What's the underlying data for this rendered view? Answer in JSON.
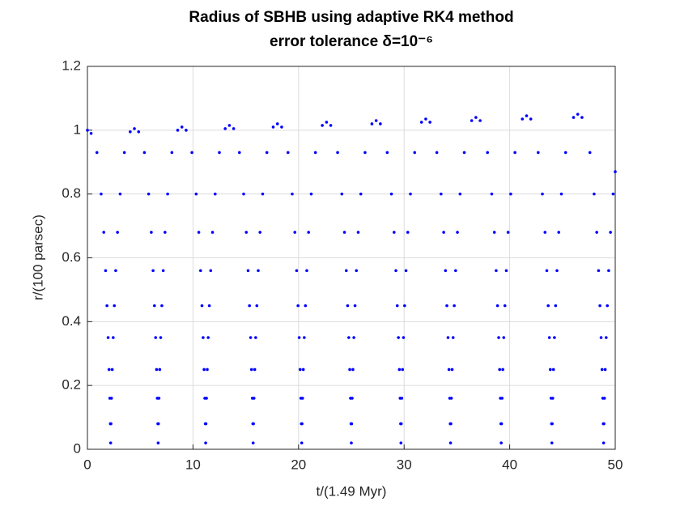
{
  "chart_data": {
    "type": "scatter",
    "title": "Radius of SBHB using adaptive RK4 method",
    "subtitle": "error tolerance δ=10⁻⁶",
    "x_label": "t/(1.49 Myr)",
    "y_label": "r/(100 parsec)",
    "color": "#0000ff",
    "grid": true,
    "xlim": [
      0,
      50
    ],
    "ylim": [
      0,
      1.2
    ],
    "xticks": [
      0,
      10,
      20,
      30,
      40,
      50
    ],
    "yticks": [
      0,
      0.2,
      0.4,
      0.6,
      0.8,
      1,
      1.2
    ],
    "x": [
      0,
      0.35,
      0.9,
      1.3,
      1.55,
      1.72,
      1.85,
      1.96,
      2.05,
      2.12,
      2.17,
      2.2,
      2.23,
      2.28,
      2.35,
      2.44,
      2.55,
      2.68,
      2.85,
      3.1,
      3.5,
      4.05,
      4.45,
      4.85,
      5.4,
      5.8,
      6.05,
      6.22,
      6.35,
      6.46,
      6.55,
      6.62,
      6.67,
      6.7,
      6.73,
      6.78,
      6.85,
      6.94,
      7.05,
      7.18,
      7.35,
      7.6,
      8.0,
      8.55,
      8.95,
      9.35,
      9.9,
      10.3,
      10.55,
      10.72,
      10.85,
      10.96,
      11.05,
      11.12,
      11.17,
      11.2,
      11.23,
      11.28,
      11.35,
      11.44,
      11.55,
      11.68,
      11.85,
      12.1,
      12.5,
      13.05,
      13.45,
      13.85,
      14.4,
      14.8,
      15.05,
      15.22,
      15.35,
      15.46,
      15.55,
      15.62,
      15.67,
      15.7,
      15.73,
      15.78,
      15.85,
      15.94,
      16.05,
      16.18,
      16.35,
      16.6,
      17.0,
      17.6,
      18.0,
      18.4,
      19.0,
      19.4,
      19.65,
      19.82,
      19.95,
      20.06,
      20.15,
      20.22,
      20.27,
      20.3,
      20.33,
      20.38,
      20.45,
      20.54,
      20.65,
      20.78,
      20.95,
      21.2,
      21.6,
      22.25,
      22.65,
      23.05,
      23.7,
      24.1,
      24.35,
      24.52,
      24.65,
      24.76,
      24.85,
      24.92,
      24.97,
      25.0,
      25.03,
      25.08,
      25.15,
      25.24,
      25.35,
      25.48,
      25.65,
      25.9,
      26.3,
      26.95,
      27.35,
      27.75,
      28.4,
      28.8,
      29.05,
      29.22,
      29.35,
      29.46,
      29.55,
      29.62,
      29.67,
      29.7,
      29.73,
      29.78,
      29.85,
      29.94,
      30.05,
      30.18,
      30.35,
      30.6,
      31.0,
      31.65,
      32.05,
      32.45,
      33.1,
      33.5,
      33.75,
      33.92,
      34.05,
      34.16,
      34.25,
      34.32,
      34.37,
      34.4,
      34.43,
      34.48,
      34.55,
      34.64,
      34.75,
      34.88,
      35.05,
      35.3,
      35.7,
      36.4,
      36.8,
      37.2,
      37.9,
      38.3,
      38.55,
      38.72,
      38.85,
      38.96,
      39.05,
      39.12,
      39.17,
      39.2,
      39.23,
      39.28,
      39.35,
      39.44,
      39.55,
      39.68,
      39.85,
      40.1,
      40.5,
      41.2,
      41.6,
      42.0,
      42.7,
      43.1,
      43.35,
      43.52,
      43.65,
      43.76,
      43.85,
      43.92,
      43.97,
      44.0,
      44.03,
      44.08,
      44.15,
      44.24,
      44.35,
      44.48,
      44.65,
      44.9,
      45.3,
      46.05,
      46.45,
      46.85,
      47.6,
      48.0,
      48.25,
      48.42,
      48.55,
      48.66,
      48.75,
      48.82,
      48.87,
      48.9,
      48.93,
      48.98,
      49.05,
      49.14,
      49.25,
      49.38,
      49.55,
      49.8,
      50.0
    ],
    "values": [
      1.0,
      0.99,
      0.93,
      0.8,
      0.68,
      0.56,
      0.45,
      0.35,
      0.25,
      0.16,
      0.08,
      0.02,
      0.08,
      0.16,
      0.25,
      0.35,
      0.45,
      0.56,
      0.68,
      0.8,
      0.93,
      0.995,
      1.005,
      0.995,
      0.93,
      0.8,
      0.68,
      0.56,
      0.45,
      0.35,
      0.25,
      0.16,
      0.08,
      0.02,
      0.08,
      0.16,
      0.25,
      0.35,
      0.45,
      0.56,
      0.68,
      0.8,
      0.93,
      1.0,
      1.01,
      1.0,
      0.93,
      0.8,
      0.68,
      0.56,
      0.45,
      0.35,
      0.25,
      0.16,
      0.08,
      0.02,
      0.08,
      0.16,
      0.25,
      0.35,
      0.45,
      0.56,
      0.68,
      0.8,
      0.93,
      1.005,
      1.015,
      1.005,
      0.93,
      0.8,
      0.68,
      0.56,
      0.45,
      0.35,
      0.25,
      0.16,
      0.08,
      0.02,
      0.08,
      0.16,
      0.25,
      0.35,
      0.45,
      0.56,
      0.68,
      0.8,
      0.93,
      1.01,
      1.02,
      1.01,
      0.93,
      0.8,
      0.68,
      0.56,
      0.45,
      0.35,
      0.25,
      0.16,
      0.08,
      0.02,
      0.08,
      0.16,
      0.25,
      0.35,
      0.45,
      0.56,
      0.68,
      0.8,
      0.93,
      1.015,
      1.025,
      1.015,
      0.93,
      0.8,
      0.68,
      0.56,
      0.45,
      0.35,
      0.25,
      0.16,
      0.08,
      0.02,
      0.08,
      0.16,
      0.25,
      0.35,
      0.45,
      0.56,
      0.68,
      0.8,
      0.93,
      1.02,
      1.03,
      1.02,
      0.93,
      0.8,
      0.68,
      0.56,
      0.45,
      0.35,
      0.25,
      0.16,
      0.08,
      0.02,
      0.08,
      0.16,
      0.25,
      0.35,
      0.45,
      0.56,
      0.68,
      0.8,
      0.93,
      1.025,
      1.035,
      1.025,
      0.93,
      0.8,
      0.68,
      0.56,
      0.45,
      0.35,
      0.25,
      0.16,
      0.08,
      0.02,
      0.08,
      0.16,
      0.25,
      0.35,
      0.45,
      0.56,
      0.68,
      0.8,
      0.93,
      1.03,
      1.04,
      1.03,
      0.93,
      0.8,
      0.68,
      0.56,
      0.45,
      0.35,
      0.25,
      0.16,
      0.08,
      0.02,
      0.08,
      0.16,
      0.25,
      0.35,
      0.45,
      0.56,
      0.68,
      0.8,
      0.93,
      1.035,
      1.045,
      1.035,
      0.93,
      0.8,
      0.68,
      0.56,
      0.45,
      0.35,
      0.25,
      0.16,
      0.08,
      0.02,
      0.08,
      0.16,
      0.25,
      0.35,
      0.45,
      0.56,
      0.68,
      0.8,
      0.93,
      1.04,
      1.05,
      1.04,
      0.93,
      0.8,
      0.68,
      0.56,
      0.45,
      0.35,
      0.25,
      0.16,
      0.08,
      0.02,
      0.08,
      0.16,
      0.25,
      0.35,
      0.45,
      0.56,
      0.68,
      0.8,
      0.87
    ]
  }
}
